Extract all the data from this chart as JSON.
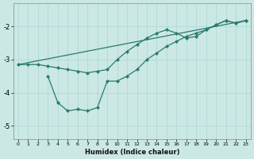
{
  "xlabel": "Humidex (Indice chaleur)",
  "bg_color": "#cbe8e4",
  "line_color": "#2a7a6e",
  "grid_color": "#a8d8d4",
  "xlim": [
    -0.5,
    23.5
  ],
  "ylim": [
    -5.4,
    -1.3
  ],
  "yticks": [
    -5,
    -4,
    -3,
    -2
  ],
  "xticks": [
    0,
    1,
    2,
    3,
    4,
    5,
    6,
    7,
    8,
    9,
    10,
    11,
    12,
    13,
    14,
    15,
    16,
    17,
    18,
    19,
    20,
    21,
    22,
    23
  ],
  "line1_x": [
    0,
    1,
    2,
    3,
    4,
    5,
    6,
    7,
    8,
    9,
    10,
    11,
    12,
    13,
    14,
    15,
    16,
    17,
    18,
    19,
    20,
    21,
    22,
    23
  ],
  "line1_y": [
    -3.15,
    -3.15,
    -3.15,
    -3.2,
    -3.25,
    -3.3,
    -3.35,
    -3.4,
    -3.35,
    -3.3,
    -3.0,
    -2.75,
    -2.55,
    -2.35,
    -2.2,
    -2.1,
    -2.2,
    -2.35,
    -2.3,
    -2.1,
    -1.95,
    -1.82,
    -1.9,
    -1.82
  ],
  "line2_x": [
    3,
    4,
    5,
    6,
    7,
    8,
    9,
    10,
    11,
    12,
    13,
    14,
    15,
    16,
    17,
    18,
    19,
    20,
    21,
    22,
    23
  ],
  "line2_y": [
    -3.5,
    -4.3,
    -4.55,
    -4.5,
    -4.55,
    -4.45,
    -3.65,
    -3.65,
    -3.5,
    -3.3,
    -3.0,
    -2.8,
    -2.6,
    -2.45,
    -2.3,
    -2.2,
    -2.1,
    -1.95,
    -1.82,
    -1.9,
    -1.82
  ],
  "line3_x": [
    0,
    23
  ],
  "line3_y": [
    -3.15,
    -1.82
  ]
}
